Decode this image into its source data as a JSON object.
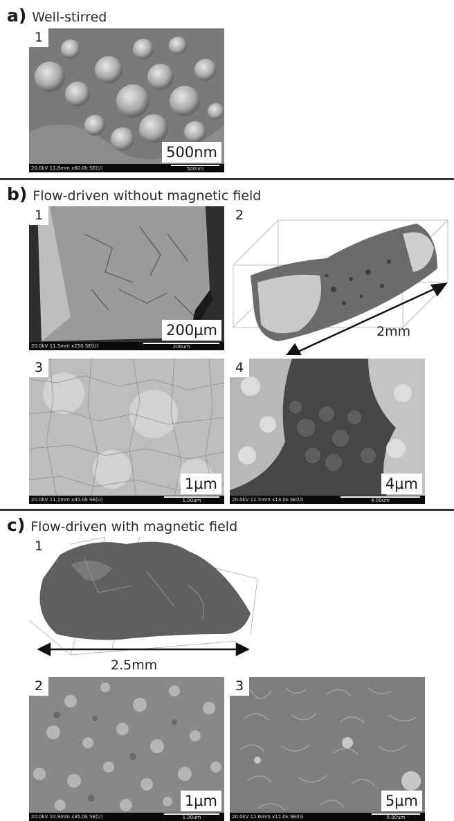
{
  "sections": [
    {
      "letter": "a)",
      "title": "Well-stirred"
    },
    {
      "letter": "b)",
      "title": "Flow-driven without magnetic field"
    },
    {
      "letter": "c)",
      "title": "Flow-driven with magnetic field"
    }
  ],
  "panels": {
    "a1": {
      "num": "1",
      "scale": "500nm",
      "meta": "20.0kV 11.8mm x60.0k SE(U)",
      "bar_unit": "500nm"
    },
    "b1": {
      "num": "1",
      "scale": "200µm",
      "meta": "20.0kV 11.5mm x250 SE(U)",
      "bar_unit": "200um"
    },
    "b2": {
      "num": "2",
      "measure": "2mm"
    },
    "b3": {
      "num": "3",
      "scale": "1µm",
      "meta": "20.0kV 11.1mm x35.0k SE(U)",
      "bar_unit": "1.00um"
    },
    "b4": {
      "num": "4",
      "scale": "4µm",
      "meta": "20.0kV 11.5mm x13.0k SE(U)",
      "bar_unit": "4.00um"
    },
    "c1": {
      "num": "1",
      "measure": "2.5mm"
    },
    "c2": {
      "num": "2",
      "scale": "1µm",
      "meta": "20.0kV 10.9mm x35.0k SE(U)",
      "bar_unit": "1.00um"
    },
    "c3": {
      "num": "3",
      "scale": "5µm",
      "meta": "20.0kV 11.6mm x11.0k SE(U)",
      "bar_unit": "5.00um"
    }
  },
  "colors": {
    "divider": "#333333",
    "infobar": "#0a0a0a",
    "sem_light": "#b8b8b8",
    "sem_dark": "#5a5a5a"
  }
}
